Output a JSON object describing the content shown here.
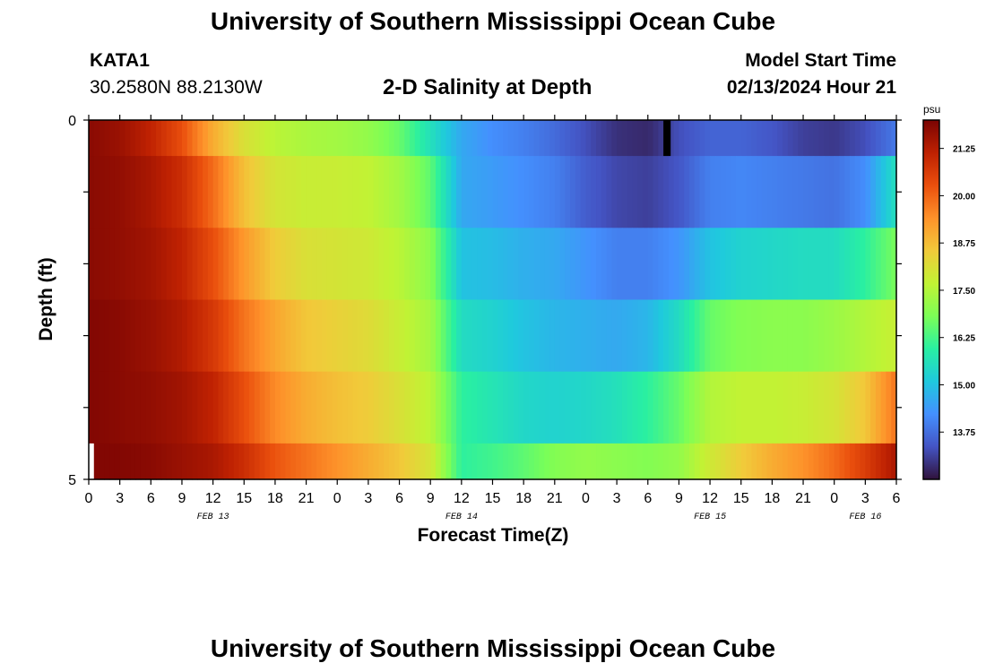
{
  "header": {
    "title": "University of Southern Mississippi Ocean Cube",
    "station": "KATA1",
    "coords": "30.2580N  88.2130W",
    "plot_title": "2-D Salinity at Depth",
    "start_label": "Model Start Time",
    "start_value": "02/13/2024 Hour 21"
  },
  "footer": {
    "title": "University of Southern Mississippi Ocean Cube"
  },
  "chart_data": {
    "type": "heatmap",
    "xlabel": "Forecast Time(Z)",
    "ylabel": "Depth (ft)",
    "x_tick_labels": [
      "0",
      "3",
      "6",
      "9",
      "12",
      "15",
      "18",
      "21",
      "0",
      "3",
      "6",
      "9",
      "12",
      "15",
      "18",
      "21",
      "0",
      "3",
      "6",
      "9",
      "12",
      "15",
      "18",
      "21",
      "0",
      "3",
      "6"
    ],
    "date_labels": [
      {
        "label": "FEB 13",
        "hour": 12
      },
      {
        "label": "FEB 14",
        "hour": 36
      },
      {
        "label": "FEB 15",
        "hour": 60
      },
      {
        "label": "FEB 16",
        "hour": 75
      }
    ],
    "x_range_hours": [
      0,
      78
    ],
    "y_tick_labels": [
      "0",
      "5"
    ],
    "y_range_ft": [
      0,
      5
    ],
    "layers_ft": [
      0,
      1,
      2,
      3,
      4,
      5
    ],
    "colorbar": {
      "unit": "psu",
      "ticks": [
        "21.25",
        "20.00",
        "18.75",
        "17.50",
        "16.25",
        "15.00",
        "13.75"
      ],
      "tick_values": [
        21.25,
        20.0,
        18.75,
        17.5,
        16.25,
        15.0,
        13.75
      ],
      "min": 12.5,
      "max": 22.0,
      "colors": [
        "#30123b",
        "#4454c4",
        "#4490fe",
        "#1fc9dd",
        "#29efa2",
        "#7cfe56",
        "#c1f334",
        "#f1ca3a",
        "#fe922a",
        "#ea4f0d",
        "#be2102",
        "#7a0403"
      ]
    },
    "salinity_keypoints": {
      "hours": [
        0,
        3,
        6,
        9,
        12,
        15,
        18,
        21,
        24,
        27,
        30,
        33,
        36,
        39,
        42,
        45,
        48,
        51,
        54,
        57,
        60,
        63,
        66,
        69,
        72,
        75,
        78
      ],
      "rows": [
        [
          21.8,
          21.6,
          21.1,
          20.3,
          19.0,
          18.1,
          17.6,
          17.4,
          17.3,
          17.1,
          16.6,
          15.6,
          14.6,
          14.2,
          14.0,
          13.7,
          13.3,
          12.9,
          12.8,
          13.3,
          13.6,
          13.6,
          13.4,
          13.1,
          13.0,
          13.3,
          13.9
        ],
        [
          21.8,
          21.7,
          21.4,
          20.9,
          19.9,
          18.7,
          18.0,
          17.8,
          17.8,
          17.7,
          17.3,
          16.5,
          14.6,
          14.4,
          14.2,
          14.0,
          13.5,
          13.2,
          13.1,
          13.4,
          14.0,
          14.1,
          14.0,
          13.9,
          13.8,
          14.2,
          15.6
        ],
        [
          21.8,
          21.7,
          21.5,
          21.1,
          20.3,
          19.3,
          18.5,
          18.1,
          18.0,
          17.9,
          17.6,
          17.0,
          15.0,
          14.9,
          14.7,
          14.6,
          14.3,
          14.0,
          14.0,
          14.3,
          15.0,
          15.3,
          15.4,
          15.5,
          15.5,
          16.0,
          16.8
        ],
        [
          21.9,
          21.8,
          21.6,
          21.3,
          20.7,
          19.8,
          19.1,
          18.6,
          18.4,
          18.2,
          17.8,
          17.3,
          15.5,
          15.3,
          15.0,
          14.8,
          14.7,
          14.6,
          14.8,
          15.5,
          16.6,
          16.9,
          17.0,
          17.0,
          17.2,
          17.5,
          17.8
        ],
        [
          21.9,
          21.8,
          21.7,
          21.5,
          21.1,
          20.3,
          19.5,
          19.0,
          18.7,
          18.5,
          18.1,
          17.6,
          16.0,
          15.7,
          15.4,
          15.3,
          15.4,
          15.6,
          16.0,
          16.6,
          17.5,
          17.7,
          17.7,
          17.8,
          18.0,
          18.6,
          19.8
        ],
        [
          21.9,
          21.9,
          21.8,
          21.6,
          21.4,
          20.9,
          20.2,
          19.8,
          19.4,
          19.0,
          18.6,
          18.0,
          16.0,
          16.2,
          16.5,
          16.9,
          17.1,
          17.0,
          16.9,
          17.1,
          17.9,
          18.5,
          19.0,
          19.4,
          19.9,
          20.6,
          21.4
        ]
      ]
    },
    "missing_cells": [
      {
        "layer": 0,
        "hour_start": 55.5,
        "hour_end": 56.2
      },
      {
        "layer": 5,
        "hour_start": 0,
        "hour_end": 0.5
      }
    ]
  }
}
